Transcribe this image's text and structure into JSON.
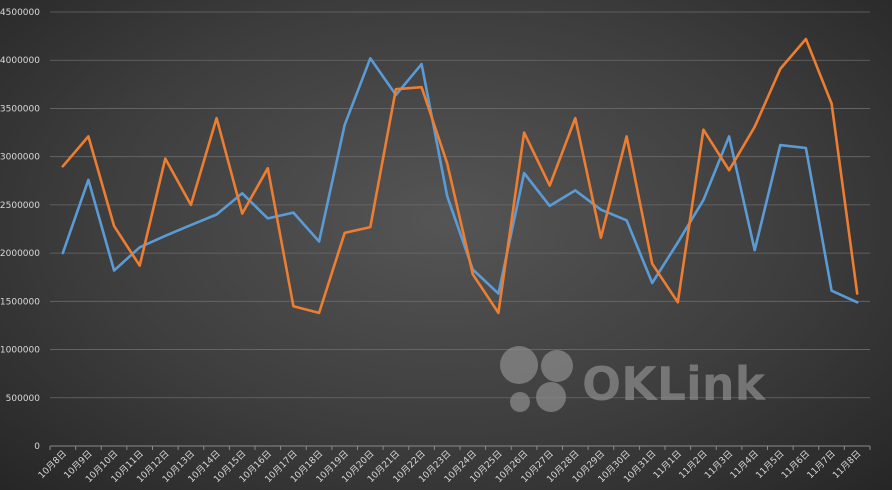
{
  "watermark": {
    "text": "OKLink",
    "color": "#8c8c8c"
  },
  "chart_data": {
    "type": "line",
    "title": "",
    "xlabel": "",
    "ylabel": "",
    "ylim": [
      0,
      4500000
    ],
    "y_ticks": [
      0,
      500000,
      1000000,
      1500000,
      2000000,
      2500000,
      3000000,
      3500000,
      4000000,
      4500000
    ],
    "grid": true,
    "legend": "none",
    "categories": [
      "10月8日",
      "10月9日",
      "10月10日",
      "10月11日",
      "10月12日",
      "10月13日",
      "10月14日",
      "10月15日",
      "10月16日",
      "10月17日",
      "10月18日",
      "10月19日",
      "10月20日",
      "10月21日",
      "10月22日",
      "10月23日",
      "10月24日",
      "10月25日",
      "10月26日",
      "10月27日",
      "10月28日",
      "10月29日",
      "10月30日",
      "10月31日",
      "11月1日",
      "11月2日",
      "11月3日",
      "11月4日",
      "11月5日",
      "11月6日",
      "11月7日",
      "11月8日"
    ],
    "series": [
      {
        "color": "#5b9bd5",
        "values": [
          2000000,
          2760000,
          1820000,
          2060000,
          2180000,
          2290000,
          2400000,
          2620000,
          2360000,
          2420000,
          2120000,
          3330000,
          4020000,
          3640000,
          3960000,
          2590000,
          1830000,
          1580000,
          2830000,
          2490000,
          2650000,
          2450000,
          2340000,
          1690000,
          2110000,
          2550000,
          3210000,
          2030000,
          3120000,
          3090000,
          1610000,
          1490000
        ]
      },
      {
        "color": "#ed7d31",
        "values": [
          2900000,
          3210000,
          2280000,
          1870000,
          2980000,
          2500000,
          3400000,
          2410000,
          2880000,
          1450000,
          1380000,
          2210000,
          2270000,
          3700000,
          3720000,
          2930000,
          1780000,
          1380000,
          3250000,
          2700000,
          3400000,
          2160000,
          3210000,
          1890000,
          1490000,
          3280000,
          2860000,
          3310000,
          3910000,
          4220000,
          3550000,
          1580000
        ]
      }
    ]
  }
}
